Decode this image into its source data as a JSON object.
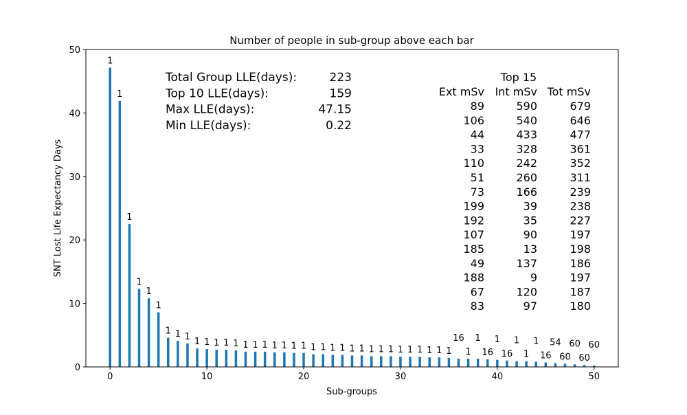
{
  "chart_data": {
    "type": "bar",
    "title": "Number of people in sub-group above each bar",
    "xlabel": "Sub-groups",
    "ylabel": "SNT Lost Life Expectancy Days",
    "xlim": [
      -2.5,
      52.5
    ],
    "ylim": [
      0,
      50
    ],
    "x_ticks": [
      0,
      10,
      20,
      30,
      40,
      50
    ],
    "y_ticks": [
      0,
      10,
      20,
      30,
      40,
      50
    ],
    "grid": false,
    "color": "#1f77b4",
    "x": [
      0,
      1,
      2,
      3,
      4,
      5,
      6,
      7,
      8,
      9,
      10,
      11,
      12,
      13,
      14,
      15,
      16,
      17,
      18,
      19,
      20,
      21,
      22,
      23,
      24,
      25,
      26,
      27,
      28,
      29,
      30,
      31,
      32,
      33,
      34,
      35,
      36,
      37,
      38,
      39,
      40,
      41,
      42,
      43,
      44,
      45,
      46,
      47,
      48,
      49,
      50
    ],
    "values": [
      47.15,
      41.9,
      22.5,
      12.3,
      10.8,
      8.6,
      4.6,
      4.1,
      3.7,
      2.9,
      2.8,
      2.7,
      2.7,
      2.6,
      2.4,
      2.4,
      2.4,
      2.3,
      2.3,
      2.2,
      2.2,
      2.0,
      2.0,
      1.9,
      1.9,
      1.8,
      1.8,
      1.7,
      1.7,
      1.7,
      1.6,
      1.6,
      1.6,
      1.5,
      1.5,
      1.4,
      1.3,
      1.3,
      1.3,
      1.2,
      1.1,
      1.0,
      0.9,
      0.9,
      0.8,
      0.7,
      0.6,
      0.5,
      0.4,
      0.3,
      0.22
    ],
    "bar_labels": [
      "1",
      "1",
      "1",
      "1",
      "1",
      "1",
      "1",
      "1",
      "1",
      "1",
      "1",
      "1",
      "1",
      "1",
      "1",
      "1",
      "1",
      "1",
      "1",
      "1",
      "1",
      "1",
      "1",
      "1",
      "1",
      "1",
      "1",
      "1",
      "1",
      "1",
      "1",
      "1",
      "1",
      "1",
      "1",
      "1",
      "16",
      "1",
      "1",
      "16",
      "1",
      "16",
      "1",
      "1",
      "1",
      "16",
      "54",
      "60",
      "60",
      "60",
      "60"
    ],
    "label_tier": [
      0,
      0,
      0,
      0,
      0,
      0,
      0,
      0,
      0,
      0,
      0,
      0,
      0,
      0,
      0,
      0,
      0,
      0,
      0,
      0,
      0,
      0,
      0,
      0,
      0,
      0,
      0,
      0,
      0,
      0,
      0,
      0,
      0,
      0,
      0,
      0,
      1,
      0,
      1,
      0,
      1,
      0,
      1,
      0,
      1,
      0,
      1,
      0,
      1,
      0,
      1
    ]
  },
  "stats": [
    {
      "label": "Total Group LLE(days):",
      "value": "223"
    },
    {
      "label": "Top 10 LLE(days):",
      "value": "159"
    },
    {
      "label": "Max LLE(days):",
      "value": "47.15"
    },
    {
      "label": "Min LLE(days):",
      "value": "0.22"
    }
  ],
  "top_table": {
    "title": "Top 15",
    "headers": [
      "Ext mSv",
      "Int mSv",
      "Tot mSv"
    ],
    "rows": [
      [
        "89",
        "590",
        "679"
      ],
      [
        "106",
        "540",
        "646"
      ],
      [
        "44",
        "433",
        "477"
      ],
      [
        "33",
        "328",
        "361"
      ],
      [
        "110",
        "242",
        "352"
      ],
      [
        "51",
        "260",
        "311"
      ],
      [
        "73",
        "166",
        "239"
      ],
      [
        "199",
        "39",
        "238"
      ],
      [
        "192",
        "35",
        "227"
      ],
      [
        "107",
        "90",
        "197"
      ],
      [
        "185",
        "13",
        "198"
      ],
      [
        "49",
        "137",
        "186"
      ],
      [
        "188",
        "9",
        "197"
      ],
      [
        "67",
        "120",
        "187"
      ],
      [
        "83",
        "97",
        "180"
      ]
    ]
  }
}
